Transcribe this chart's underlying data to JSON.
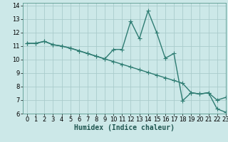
{
  "xlabel": "Humidex (Indice chaleur)",
  "ylabel": "",
  "background_color": "#cce8e8",
  "grid_color": "#aacccc",
  "line_color": "#2e7c72",
  "xlim": [
    -0.5,
    23
  ],
  "ylim": [
    6,
    14.2
  ],
  "xticks": [
    0,
    1,
    2,
    3,
    4,
    5,
    6,
    7,
    8,
    9,
    10,
    11,
    12,
    13,
    14,
    15,
    16,
    17,
    18,
    19,
    20,
    21,
    22,
    23
  ],
  "yticks": [
    6,
    7,
    8,
    9,
    10,
    11,
    12,
    13,
    14
  ],
  "series1_x": [
    0,
    1,
    2,
    3,
    4,
    5,
    6,
    7,
    8,
    9,
    10,
    11,
    12,
    13,
    14,
    15,
    16,
    17,
    18,
    19,
    20,
    21,
    22,
    23
  ],
  "series1_y": [
    11.2,
    11.2,
    11.35,
    11.1,
    11.0,
    10.85,
    10.65,
    10.45,
    10.25,
    10.05,
    9.85,
    9.65,
    9.45,
    9.25,
    9.05,
    8.85,
    8.65,
    8.45,
    8.25,
    7.55,
    7.45,
    7.55,
    7.0,
    7.2
  ],
  "series2_x": [
    0,
    1,
    2,
    3,
    4,
    5,
    6,
    7,
    8,
    9,
    10,
    11,
    12,
    13,
    14,
    15,
    16,
    17,
    18,
    19,
    20,
    21,
    22,
    23
  ],
  "series2_y": [
    11.2,
    11.2,
    11.35,
    11.1,
    11.0,
    10.85,
    10.65,
    10.45,
    10.25,
    10.05,
    10.75,
    10.75,
    12.85,
    11.55,
    13.6,
    12.0,
    10.1,
    10.45,
    6.95,
    7.55,
    7.45,
    7.55,
    6.35,
    6.1
  ],
  "line_width": 1.0,
  "marker_size": 4,
  "font_size": 7
}
